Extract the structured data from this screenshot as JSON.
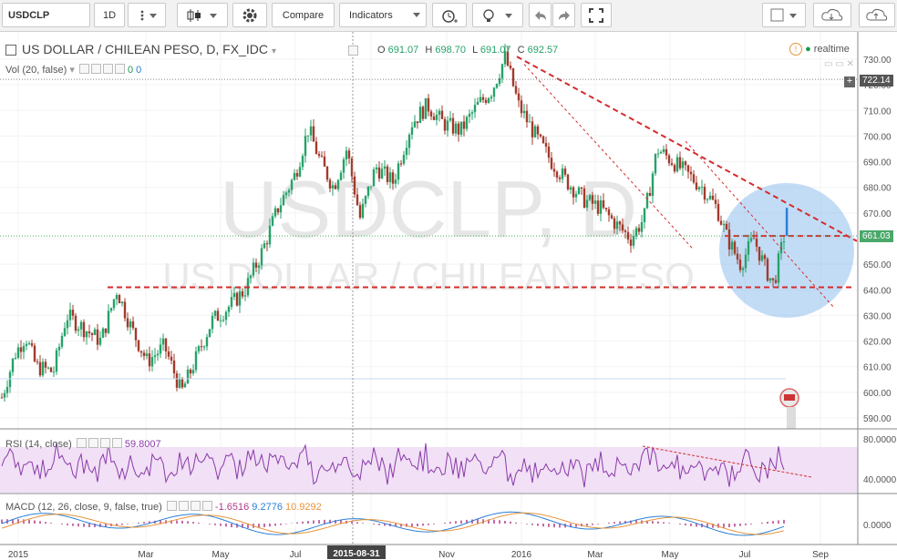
{
  "toolbar": {
    "symbol": "USDCLP",
    "interval": "1D",
    "compare_label": "Compare",
    "indicators_label": "Indicators"
  },
  "legend": {
    "title": "US DOLLAR / CHILEAN PESO, D, FX_IDC",
    "o_label": "O",
    "o": "691.07",
    "h_label": "H",
    "h": "698.70",
    "l_label": "L",
    "l": "691.07",
    "c_label": "C",
    "c": "692.57",
    "realtime": "realtime",
    "vol_label": "Vol (20, false)",
    "vol_a": "0",
    "vol_b": "0"
  },
  "watermark": {
    "symbol": "USDCLP, D",
    "name": "US DOLLAR / CHILEAN PESO"
  },
  "price_tags": {
    "upper": "722.14",
    "current": "661.03"
  },
  "rsi": {
    "label": "RSI (14, close)",
    "value": "59.8007",
    "axis": [
      "80.0000",
      "40.0000"
    ]
  },
  "macd": {
    "label": "MACD (12, 26, close, 9, false, true)",
    "v1": "-1.6516",
    "v2": "9.2776",
    "v3": "10.9292",
    "axis": [
      "0.0000"
    ]
  },
  "time_axis": [
    "2015",
    "Mar",
    "May",
    "Jul",
    "2015-08-31",
    "Nov",
    "2016",
    "Mar",
    "May",
    "Jul",
    "Sep"
  ],
  "colors": {
    "up": "#26a269",
    "down": "#a33a2c",
    "trendline": "#d62c2c",
    "rsi": "#8a3aa8",
    "macd": "#2a7fd6",
    "signal": "#e8943a",
    "hist": "#b03b8a",
    "circle": "#6aa8e8"
  },
  "chart_data": {
    "type": "candlestick",
    "title": "US DOLLAR / CHILEAN PESO, D, FX_IDC",
    "ylim": [
      585,
      735
    ],
    "y_ticks": [
      590,
      600,
      610,
      620,
      630,
      640,
      650,
      660,
      670,
      680,
      690,
      700,
      710,
      720,
      730
    ],
    "x_ticks": [
      "2015",
      "Mar",
      "May",
      "Jul",
      "2015-08-31",
      "Nov",
      "2016",
      "Mar",
      "May",
      "Jul",
      "Sep"
    ],
    "close_path": [
      {
        "x": "2015-01-02",
        "y": 598
      },
      {
        "x": "2015-01-12",
        "y": 615
      },
      {
        "x": "2015-01-20",
        "y": 622
      },
      {
        "x": "2015-01-28",
        "y": 610
      },
      {
        "x": "2015-02-10",
        "y": 608
      },
      {
        "x": "2015-02-20",
        "y": 630
      },
      {
        "x": "2015-03-05",
        "y": 625
      },
      {
        "x": "2015-03-18",
        "y": 620
      },
      {
        "x": "2015-03-30",
        "y": 640
      },
      {
        "x": "2015-04-10",
        "y": 625
      },
      {
        "x": "2015-04-22",
        "y": 612
      },
      {
        "x": "2015-05-05",
        "y": 618
      },
      {
        "x": "2015-05-18",
        "y": 600
      },
      {
        "x": "2015-05-28",
        "y": 612
      },
      {
        "x": "2015-06-10",
        "y": 628
      },
      {
        "x": "2015-06-22",
        "y": 633
      },
      {
        "x": "2015-07-05",
        "y": 640
      },
      {
        "x": "2015-07-18",
        "y": 655
      },
      {
        "x": "2015-07-30",
        "y": 672
      },
      {
        "x": "2015-08-12",
        "y": 685
      },
      {
        "x": "2015-08-22",
        "y": 703
      },
      {
        "x": "2015-08-31",
        "y": 690
      },
      {
        "x": "2015-09-10",
        "y": 680
      },
      {
        "x": "2015-09-20",
        "y": 695
      },
      {
        "x": "2015-09-30",
        "y": 668
      },
      {
        "x": "2015-10-12",
        "y": 688
      },
      {
        "x": "2015-10-25",
        "y": 682
      },
      {
        "x": "2015-11-08",
        "y": 705
      },
      {
        "x": "2015-11-20",
        "y": 712
      },
      {
        "x": "2015-12-02",
        "y": 705
      },
      {
        "x": "2015-12-15",
        "y": 702
      },
      {
        "x": "2015-12-28",
        "y": 712
      },
      {
        "x": "2016-01-08",
        "y": 718
      },
      {
        "x": "2016-01-18",
        "y": 731
      },
      {
        "x": "2016-01-28",
        "y": 712
      },
      {
        "x": "2016-02-10",
        "y": 700
      },
      {
        "x": "2016-02-22",
        "y": 690
      },
      {
        "x": "2016-03-05",
        "y": 682
      },
      {
        "x": "2016-03-18",
        "y": 675
      },
      {
        "x": "2016-03-30",
        "y": 672
      },
      {
        "x": "2016-04-12",
        "y": 665
      },
      {
        "x": "2016-04-22",
        "y": 660
      },
      {
        "x": "2016-05-02",
        "y": 668
      },
      {
        "x": "2016-05-12",
        "y": 695
      },
      {
        "x": "2016-05-24",
        "y": 690
      },
      {
        "x": "2016-06-04",
        "y": 685
      },
      {
        "x": "2016-06-15",
        "y": 680
      },
      {
        "x": "2016-06-26",
        "y": 672
      },
      {
        "x": "2016-07-04",
        "y": 660
      },
      {
        "x": "2016-07-14",
        "y": 650
      },
      {
        "x": "2016-07-24",
        "y": 660
      },
      {
        "x": "2016-08-02",
        "y": 648
      },
      {
        "x": "2016-08-08",
        "y": 642
      },
      {
        "x": "2016-08-16",
        "y": 661
      }
    ],
    "last_spike": {
      "x": "2016-08-18",
      "low": 661,
      "high": 672
    },
    "lines": [
      {
        "name": "support",
        "y": 641
      },
      {
        "name": "resistance",
        "y": 661
      }
    ]
  }
}
